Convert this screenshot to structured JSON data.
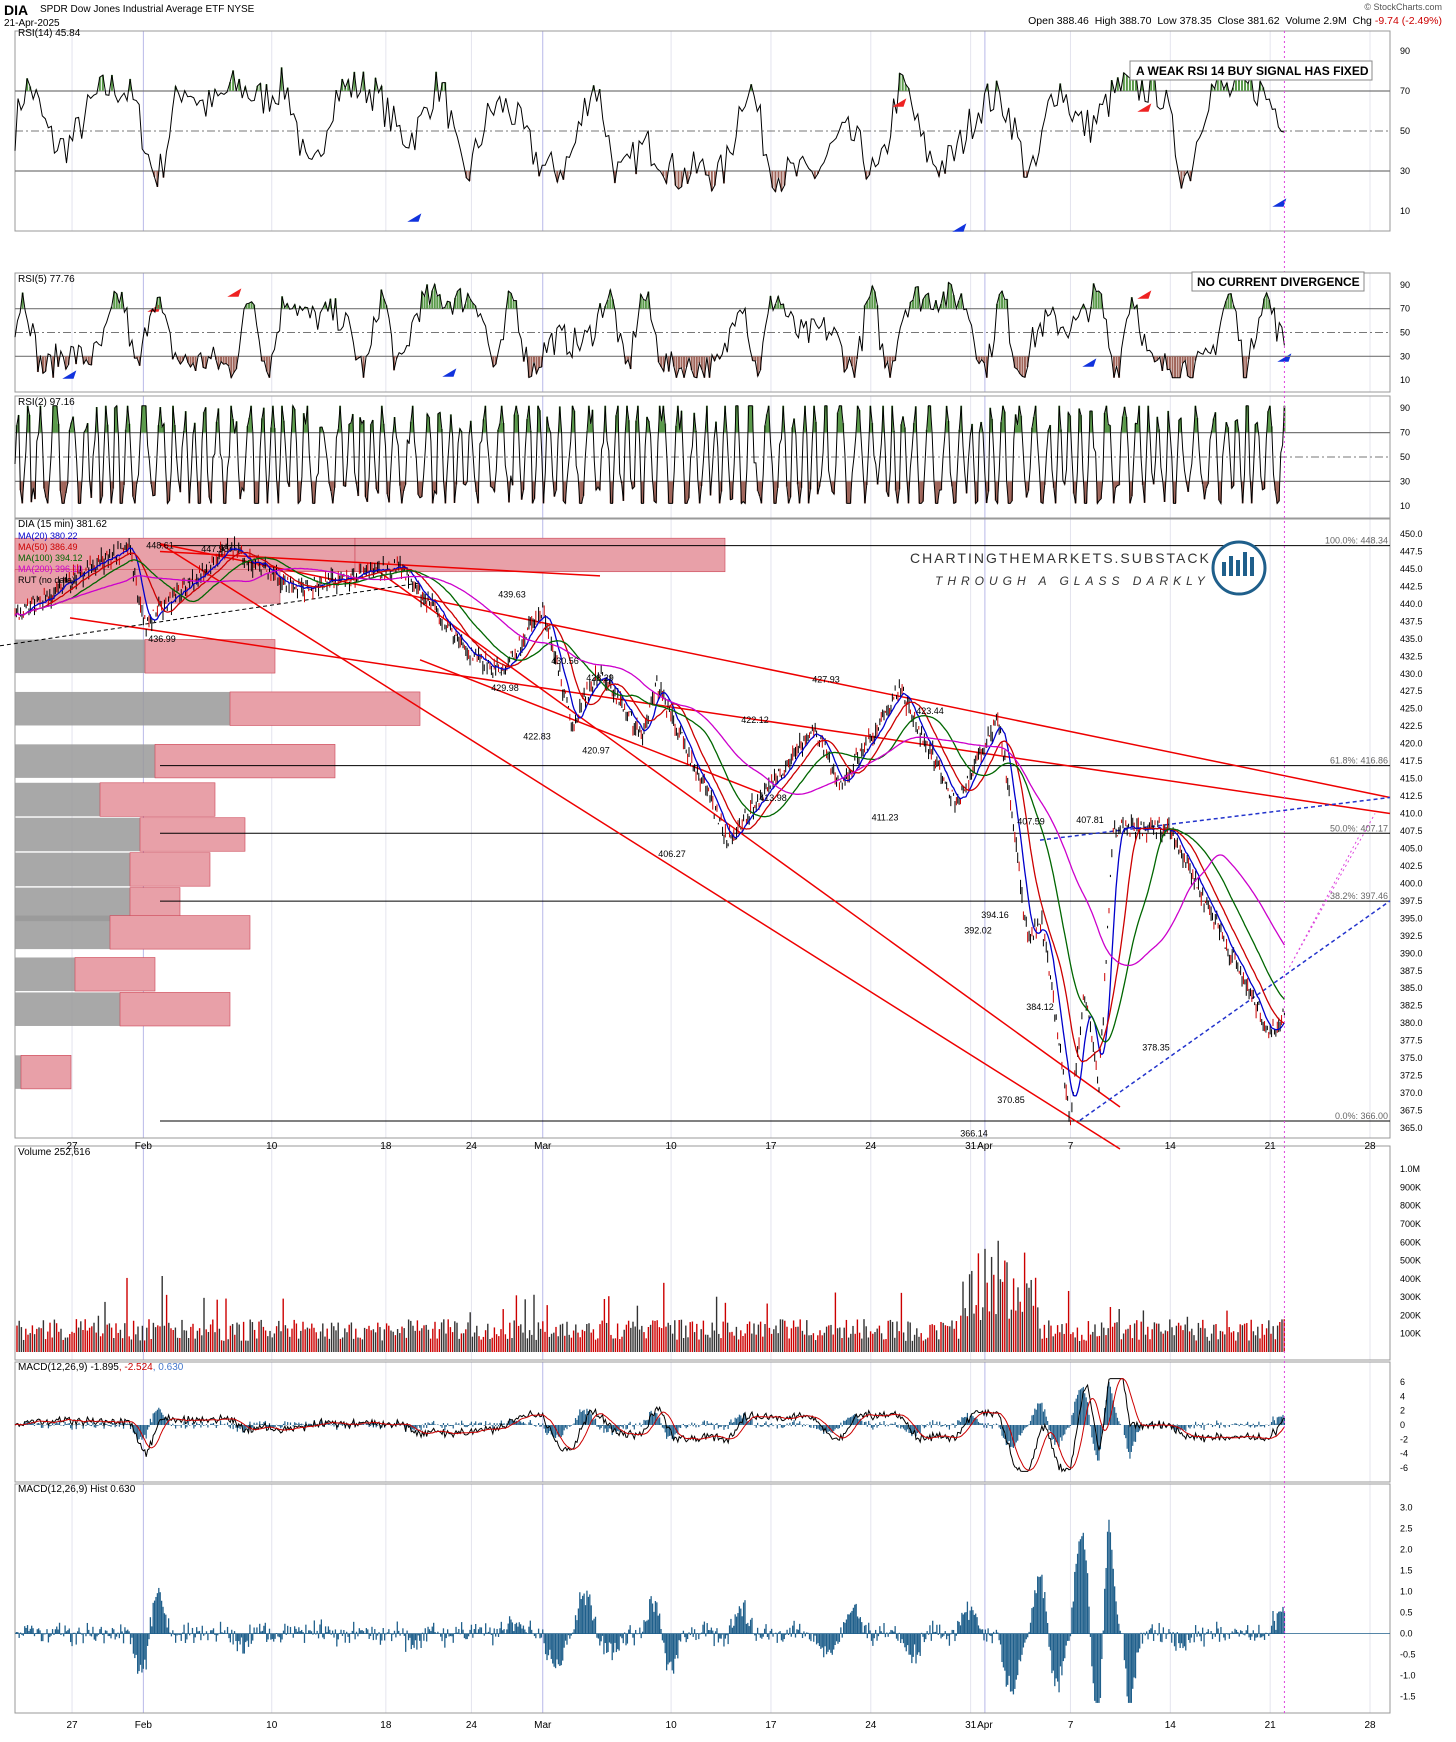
{
  "header": {
    "symbol": "DIA",
    "name": "SPDR Dow Jones Industrial Average ETF",
    "exchange": "NYSE",
    "date": "21-Apr-2025",
    "brand": "© StockCharts.com",
    "open_label": "Open",
    "open": "388.46",
    "high_label": "High",
    "high": "388.70",
    "low_label": "Low",
    "low": "378.35",
    "close_label": "Close",
    "close": "381.62",
    "volume_label": "Volume",
    "volume": "2.9M",
    "change_label": "Chg",
    "change": "-9.74 (-2.49%)"
  },
  "colors": {
    "rsi_overbought": "#5a9a4a",
    "rsi_oversold": "#a0655a",
    "ma20": "#0000cc",
    "ma50": "#cc0000",
    "ma100": "#006600",
    "ma200": "#cc00cc",
    "volume_up": "#333333",
    "volume_down": "#cc0000",
    "macd_hist": "#1f5f8b",
    "trendline": "#ee0000",
    "volume_profile_up": "#999999",
    "volume_profile_down": "#e8a0a8"
  },
  "x_axis": {
    "labels": [
      "27",
      "Feb",
      "10",
      "18",
      "24",
      "Mar",
      "10",
      "17",
      "24",
      "31",
      "Apr",
      "7",
      "14",
      "21",
      "28"
    ]
  },
  "panels": {
    "rsi14": {
      "title": "RSI(14) 45.84",
      "ticks": [
        "90",
        "70",
        "50",
        "30",
        "10"
      ],
      "note": "A WEAK RSI 14 BUY SIGNAL HAS FIXED"
    },
    "rsi5": {
      "title": "RSI(5) 77.76",
      "ticks": [
        "90",
        "70",
        "50",
        "30",
        "10"
      ],
      "note": "NO CURRENT DIVERGENCE"
    },
    "rsi2": {
      "title": "RSI(2) 97.16",
      "ticks": [
        "90",
        "70",
        "50",
        "30",
        "10"
      ]
    },
    "price": {
      "title": "DIA (15 min) 381.62",
      "legend": [
        "MA(20) 380.22",
        "MA(50) 386.49",
        "MA(100) 394.12",
        "MA(200) 396.10",
        "RUT (no data)"
      ],
      "ticks": [
        "450.0",
        "447.5",
        "445.0",
        "442.5",
        "440.0",
        "437.5",
        "435.0",
        "432.5",
        "430.0",
        "427.5",
        "425.0",
        "422.5",
        "420.0",
        "417.5",
        "415.0",
        "412.5",
        "410.0",
        "407.5",
        "405.0",
        "402.5",
        "400.0",
        "397.5",
        "395.0",
        "392.5",
        "390.0",
        "387.5",
        "385.0",
        "382.5",
        "380.0",
        "377.5",
        "375.0",
        "372.5",
        "370.0",
        "367.5",
        "365.0"
      ],
      "fib": [
        "100.0%: 448.34",
        "61.8%: 416.86",
        "50.0%: 407.17",
        "38.2%: 397.46",
        "0.0%: 366.00"
      ],
      "watermark_title": "CHARTINGTHEMARKETS.SUBSTACK.COM",
      "watermark_sub": "THROUGH A GLASS DARKLY"
    },
    "volume": {
      "title": "Volume 252,616",
      "ticks": [
        "1.0M",
        "900K",
        "800K",
        "700K",
        "600K",
        "500K",
        "400K",
        "300K",
        "200K",
        "100K"
      ]
    },
    "macd": {
      "title_a": "MACD(12,26,9)",
      "title_b": "-1.895",
      "title_c": ", -2.524",
      "title_d": ", 0.630",
      "ticks": [
        "6",
        "4",
        "2",
        "0",
        "-2",
        "-4",
        "-6"
      ]
    },
    "hist": {
      "title": "MACD(12,26,9) Hist 0.630",
      "ticks": [
        "3.0",
        "2.5",
        "2.0",
        "1.5",
        "1.0",
        "0.5",
        "0.0",
        "-0.5",
        "-1.0",
        "-1.5"
      ]
    }
  },
  "chart_data": {
    "type": "line",
    "title": "DIA (15 min) 381.62",
    "x_range": [
      "2025-01-23",
      "2025-04-28"
    ],
    "ylim": [
      365,
      450
    ],
    "price_swings": [
      {
        "date": "2025-01-23",
        "value": 438.0
      },
      {
        "date": "2025-01-31",
        "value": 448.61
      },
      {
        "date": "2025-02-01",
        "value": 436.99
      },
      {
        "date": "2025-02-07",
        "value": 447.98
      },
      {
        "date": "2025-02-12",
        "value": 442.0
      },
      {
        "date": "2025-02-19",
        "value": 445.5
      },
      {
        "date": "2025-02-24",
        "value": 432.5
      },
      {
        "date": "2025-02-26",
        "value": 429.98
      },
      {
        "date": "2025-03-01",
        "value": 439.63
      },
      {
        "date": "2025-03-03",
        "value": 422.83
      },
      {
        "date": "2025-03-05",
        "value": 430.56
      },
      {
        "date": "2025-03-08",
        "value": 420.97
      },
      {
        "date": "2025-03-09",
        "value": 428.29
      },
      {
        "date": "2025-03-14",
        "value": 406.27
      },
      {
        "date": "2025-03-20",
        "value": 422.12
      },
      {
        "date": "2025-03-22",
        "value": 413.98
      },
      {
        "date": "2025-03-26",
        "value": 427.93
      },
      {
        "date": "2025-03-30",
        "value": 411.23
      },
      {
        "date": "2025-04-02",
        "value": 423.44
      },
      {
        "date": "2025-04-04",
        "value": 392.02
      },
      {
        "date": "2025-04-05",
        "value": 394.16
      },
      {
        "date": "2025-04-07",
        "value": 366.14
      },
      {
        "date": "2025-04-08",
        "value": 384.12
      },
      {
        "date": "2025-04-09",
        "value": 370.85
      },
      {
        "date": "2025-04-10",
        "value": 407.59
      },
      {
        "date": "2025-04-14",
        "value": 407.81
      },
      {
        "date": "2025-04-21",
        "value": 378.35
      },
      {
        "date": "2025-04-22",
        "value": 381.62
      }
    ],
    "price_labels": [
      "448.61",
      "447.98",
      "436.99",
      "439.63",
      "429.98",
      "430.56",
      "428.29",
      "422.83",
      "420.97",
      "406.27",
      "422.12",
      "413.98",
      "427.93",
      "411.23",
      "423.44",
      "407.59",
      "407.81",
      "392.02",
      "394.16",
      "384.12",
      "370.85",
      "366.14",
      "378.35"
    ],
    "moving_averages": {
      "MA(20)": 380.22,
      "MA(50)": 386.49,
      "MA(100)": 394.12,
      "MA(200)": 396.1
    },
    "rsi_last": {
      "RSI(14)": 45.84,
      "RSI(5)": 77.76,
      "RSI(2)": 97.16
    },
    "macd_last": {
      "macd": -1.895,
      "signal": -2.524,
      "hist": 0.63
    },
    "volume_last": 252616,
    "grid": true
  }
}
